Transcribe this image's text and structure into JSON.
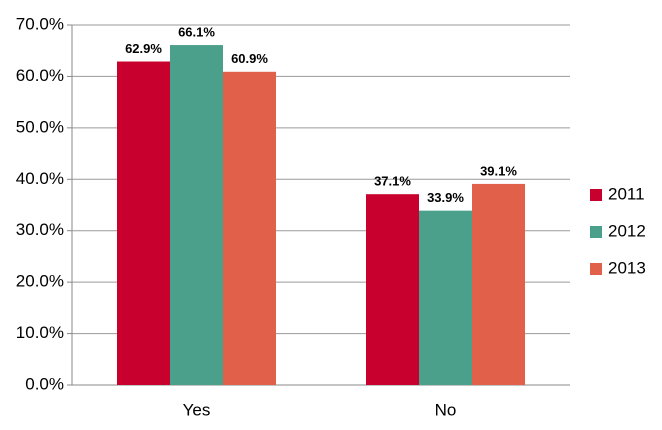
{
  "chart_data": {
    "type": "bar",
    "categories": [
      "Yes",
      "No"
    ],
    "series": [
      {
        "name": "2011",
        "color": "#c8002d",
        "values": [
          62.9,
          37.1
        ],
        "value_labels": [
          "62.9%",
          "37.1%"
        ]
      },
      {
        "name": "2012",
        "color": "#4aa08a",
        "values": [
          66.1,
          33.9
        ],
        "value_labels": [
          "66.1%",
          "33.9%"
        ]
      },
      {
        "name": "2013",
        "color": "#e0604a",
        "values": [
          60.9,
          39.1
        ],
        "value_labels": [
          "60.9%",
          "39.1%"
        ]
      }
    ],
    "ylim": [
      0,
      70
    ],
    "yticks": [
      {
        "value": 0,
        "label": "0.0%"
      },
      {
        "value": 10,
        "label": "10.0%"
      },
      {
        "value": 20,
        "label": "20.0%"
      },
      {
        "value": 30,
        "label": "30.0%"
      },
      {
        "value": 40,
        "label": "40.0%"
      },
      {
        "value": 50,
        "label": "50.0%"
      },
      {
        "value": 60,
        "label": "60.0%"
      },
      {
        "value": 70,
        "label": "70.0%"
      }
    ],
    "grid": true,
    "legend": "right"
  }
}
